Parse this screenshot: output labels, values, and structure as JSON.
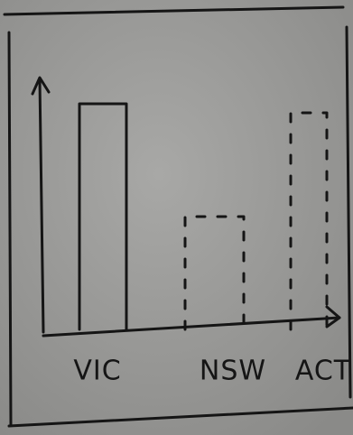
{
  "chart_data": {
    "type": "bar",
    "categories": [
      "VIC",
      "NSW",
      "ACT"
    ],
    "values": [
      250,
      125,
      240
    ],
    "dashed": [
      false,
      true,
      true
    ],
    "color": "#141414",
    "ylim": [
      0,
      280
    ]
  }
}
